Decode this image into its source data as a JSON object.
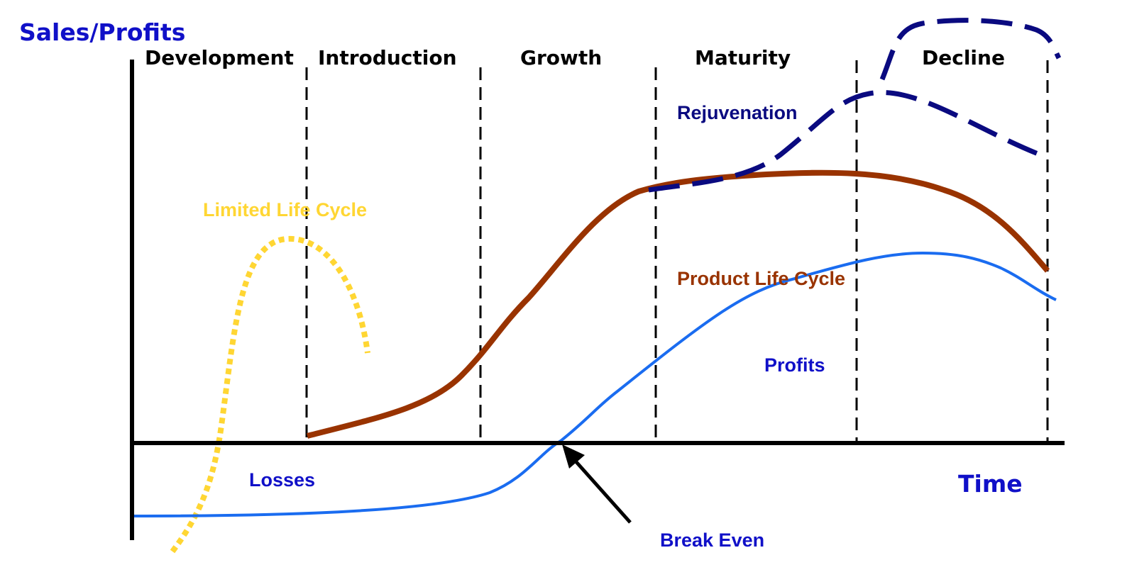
{
  "y_axis_label": "Sales/Profits",
  "x_axis_label": "Time",
  "stages": [
    "Development",
    "Introduction",
    "Growth",
    "Maturity",
    "Decline"
  ],
  "curve_labels": {
    "limited": "Limited Life Cycle",
    "rejuvenation": "Rejuvenation",
    "product": "Product Life Cycle",
    "profits": "Profits"
  },
  "annotations": {
    "losses": "Losses",
    "break_even": "Break Even"
  },
  "colors": {
    "axis_title": "#1010c8",
    "limited": "#ffd633",
    "rejuvenation": "#0a0a80",
    "product": "#993300",
    "profits": "#1a6cf0",
    "annotation": "#1010c8",
    "stage_text": "#000000"
  }
}
